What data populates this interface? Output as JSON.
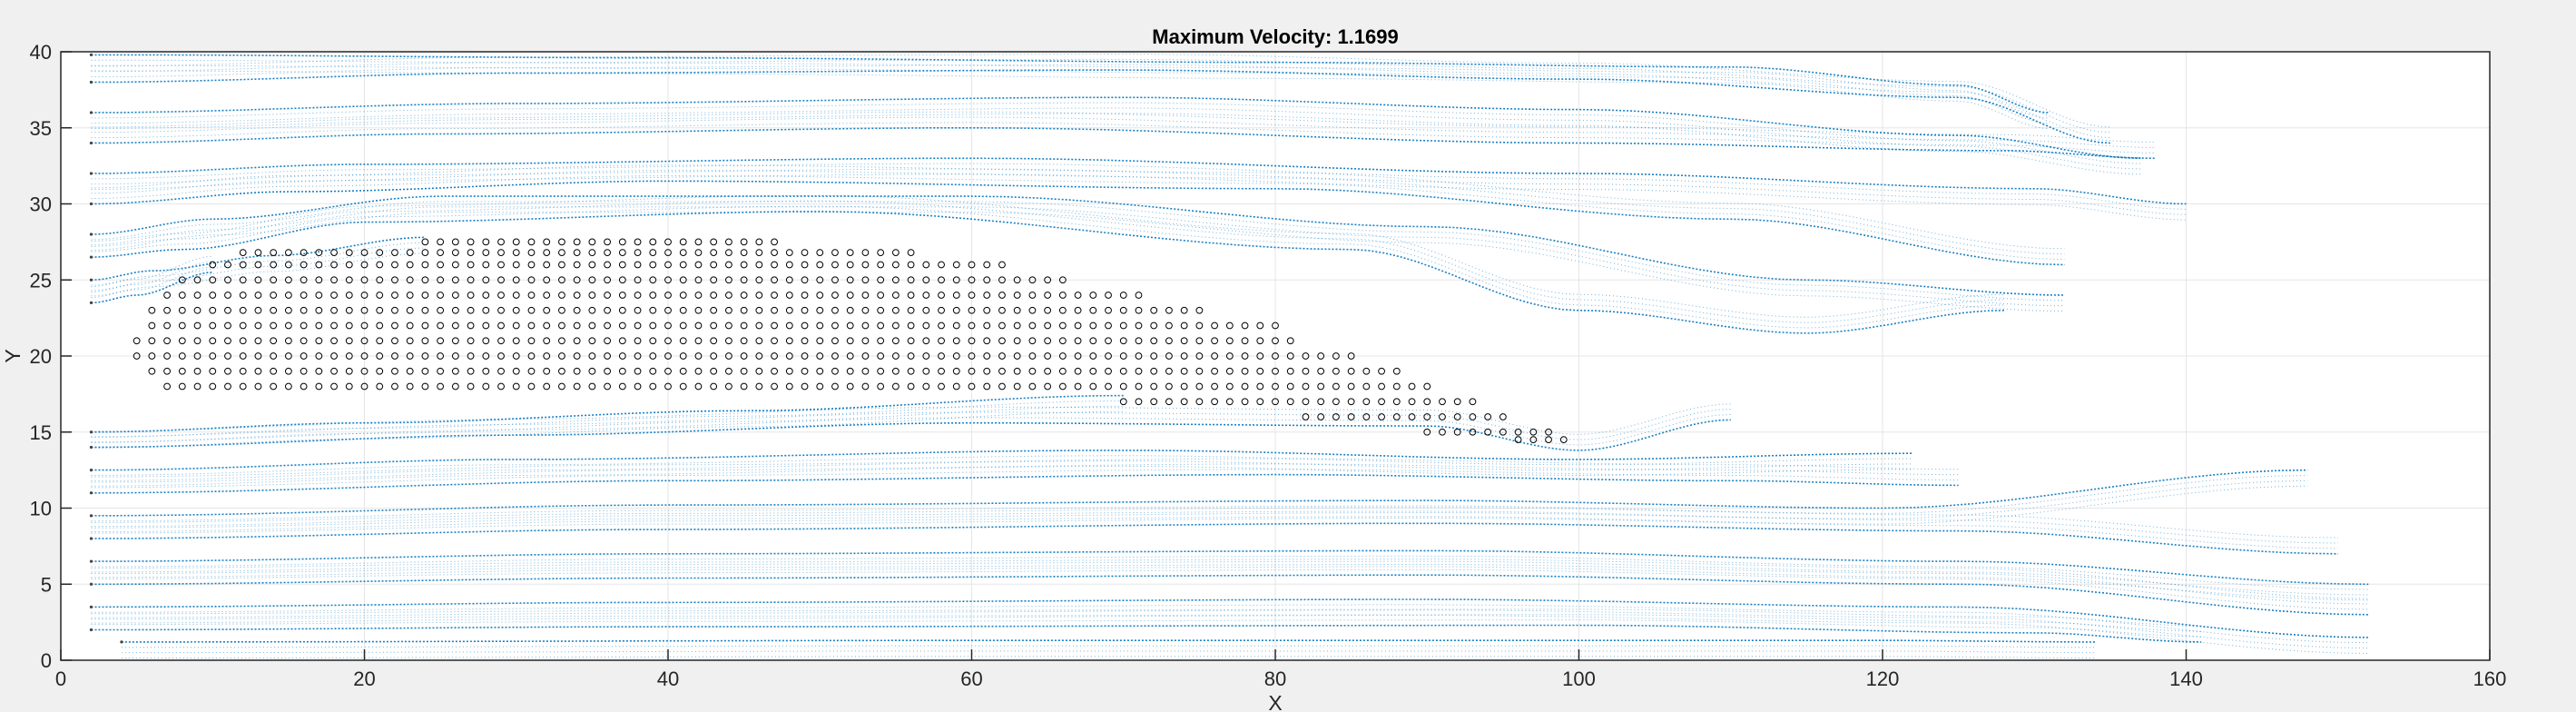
{
  "chart_data": {
    "type": "scatter",
    "title": "Maximum Velocity: 1.1699",
    "xlabel": "X",
    "ylabel": "Y",
    "xlim": [
      0,
      160
    ],
    "ylim": [
      0,
      40
    ],
    "xticks": [
      0,
      20,
      40,
      60,
      80,
      100,
      120,
      140,
      160
    ],
    "yticks": [
      0,
      5,
      10,
      15,
      20,
      25,
      30,
      35,
      40
    ],
    "grid": true,
    "colors": {
      "flow": "#0072BD",
      "obstacle": "#000000",
      "axes_background": "#ffffff",
      "figure_background": "#f0f0f0",
      "grid": "#e6e6e6"
    },
    "series": [
      {
        "marker": "dot",
        "description_visible": false,
        "streamlines": [
          {
            "y0": 39.8,
            "points": [
              [
                2,
                39.8
              ],
              [
                40,
                39.6
              ],
              [
                80,
                39.3
              ],
              [
                110,
                39.0
              ],
              [
                125,
                37.8
              ],
              [
                131,
                36.0
              ]
            ]
          },
          {
            "y0": 38.0,
            "points": [
              [
                2,
                38.0
              ],
              [
                30,
                38.6
              ],
              [
                70,
                38.8
              ],
              [
                100,
                38.2
              ],
              [
                125,
                37.0
              ],
              [
                135,
                34.0
              ]
            ]
          },
          {
            "y0": 36.0,
            "points": [
              [
                2,
                36.0
              ],
              [
                30,
                36.6
              ],
              [
                70,
                37.0
              ],
              [
                100,
                36.2
              ],
              [
                125,
                34.5
              ],
              [
                137,
                33.0
              ]
            ]
          },
          {
            "y0": 34.0,
            "points": [
              [
                2,
                34.0
              ],
              [
                25,
                34.6
              ],
              [
                60,
                35.0
              ],
              [
                100,
                34.0
              ],
              [
                128,
                33.5
              ],
              [
                138,
                33.0
              ]
            ]
          },
          {
            "y0": 32.0,
            "points": [
              [
                2,
                32.0
              ],
              [
                20,
                32.6
              ],
              [
                60,
                33.0
              ],
              [
                100,
                32.0
              ],
              [
                130,
                31.0
              ],
              [
                140,
                30.0
              ]
            ]
          },
          {
            "y0": 30.0,
            "points": [
              [
                2,
                30.0
              ],
              [
                15,
                30.8
              ],
              [
                40,
                31.5
              ],
              [
                80,
                31.0
              ],
              [
                110,
                29.0
              ],
              [
                132,
                26.0
              ]
            ]
          },
          {
            "y0": 28.0,
            "points": [
              [
                2,
                28.0
              ],
              [
                10,
                29.0
              ],
              [
                25,
                30.5
              ],
              [
                60,
                30.5
              ],
              [
                90,
                28.5
              ],
              [
                115,
                25.0
              ],
              [
                132,
                24.0
              ]
            ]
          },
          {
            "y0": 26.5,
            "points": [
              [
                2,
                26.5
              ],
              [
                8,
                27.0
              ],
              [
                20,
                28.8
              ],
              [
                50,
                29.5
              ],
              [
                85,
                27.0
              ],
              [
                100,
                23.0
              ],
              [
                115,
                21.5
              ],
              [
                128,
                23.0
              ]
            ]
          },
          {
            "y0": 25.0,
            "points": [
              [
                2,
                25.0
              ],
              [
                6,
                25.6
              ],
              [
                14,
                26.6
              ],
              [
                24,
                27.8
              ]
            ]
          },
          {
            "y0": 23.5,
            "points": [
              [
                2,
                23.5
              ],
              [
                5,
                24.0
              ],
              [
                10,
                25.5
              ]
            ]
          },
          {
            "y0": 15.0,
            "points": [
              [
                2,
                15.0
              ],
              [
                20,
                15.6
              ],
              [
                45,
                16.4
              ],
              [
                70,
                17.4
              ]
            ]
          },
          {
            "y0": 14.0,
            "points": [
              [
                2,
                14.0
              ],
              [
                30,
                14.8
              ],
              [
                60,
                15.6
              ],
              [
                90,
                15.4
              ],
              [
                100,
                13.8
              ],
              [
                110,
                15.8
              ]
            ]
          },
          {
            "y0": 12.5,
            "points": [
              [
                2,
                12.5
              ],
              [
                30,
                13.2
              ],
              [
                70,
                13.8
              ],
              [
                100,
                13.2
              ],
              [
                122,
                13.6
              ]
            ]
          },
          {
            "y0": 11.0,
            "points": [
              [
                2,
                11.0
              ],
              [
                40,
                11.8
              ],
              [
                80,
                12.2
              ],
              [
                110,
                11.8
              ],
              [
                125,
                11.5
              ]
            ]
          },
          {
            "y0": 9.5,
            "points": [
              [
                2,
                9.5
              ],
              [
                40,
                10.2
              ],
              [
                90,
                10.5
              ],
              [
                120,
                10.0
              ],
              [
                148,
                12.5
              ]
            ]
          },
          {
            "y0": 8.0,
            "points": [
              [
                2,
                8.0
              ],
              [
                40,
                8.6
              ],
              [
                90,
                9.0
              ],
              [
                125,
                8.5
              ],
              [
                150,
                7.0
              ]
            ]
          },
          {
            "y0": 6.5,
            "points": [
              [
                2,
                6.5
              ],
              [
                40,
                7.0
              ],
              [
                90,
                7.2
              ],
              [
                125,
                6.5
              ],
              [
                152,
                5.0
              ]
            ]
          },
          {
            "y0": 5.0,
            "points": [
              [
                2,
                5.0
              ],
              [
                40,
                5.4
              ],
              [
                90,
                5.6
              ],
              [
                125,
                5.0
              ],
              [
                152,
                3.0
              ]
            ]
          },
          {
            "y0": 3.5,
            "points": [
              [
                2,
                3.5
              ],
              [
                40,
                3.8
              ],
              [
                90,
                4.0
              ],
              [
                125,
                3.5
              ],
              [
                152,
                1.5
              ]
            ]
          },
          {
            "y0": 2.0,
            "points": [
              [
                2,
                2.0
              ],
              [
                40,
                2.2
              ],
              [
                100,
                2.3
              ],
              [
                130,
                1.8
              ],
              [
                141,
                1.2
              ]
            ]
          },
          {
            "y0": 1.2,
            "points": [
              [
                4,
                1.2
              ],
              [
                60,
                1.3
              ],
              [
                120,
                1.3
              ],
              [
                134,
                1.2
              ]
            ]
          }
        ]
      },
      {
        "marker": "circle",
        "obstacle_rows": [
          {
            "y": 27.5,
            "x_from": 24,
            "x_to": 47
          },
          {
            "y": 26.8,
            "x_from": 12,
            "x_to": 56
          },
          {
            "y": 26.0,
            "x_from": 10,
            "x_to": 62
          },
          {
            "y": 25.0,
            "x_from": 8,
            "x_to": 66
          },
          {
            "y": 24.0,
            "x_from": 7,
            "x_to": 71
          },
          {
            "y": 23.0,
            "x_from": 6,
            "x_to": 75
          },
          {
            "y": 22.0,
            "x_from": 6,
            "x_to": 80
          },
          {
            "y": 21.0,
            "x_from": 5,
            "x_to": 81
          },
          {
            "y": 20.0,
            "x_from": 5,
            "x_to": 85
          },
          {
            "y": 19.0,
            "x_from": 6,
            "x_to": 88
          },
          {
            "y": 18.0,
            "x_from": 7,
            "x_to": 90
          },
          {
            "y": 17.0,
            "x_from": 70,
            "x_to": 93
          },
          {
            "y": 16.0,
            "x_from": 82,
            "x_to": 95
          },
          {
            "y": 15.0,
            "x_from": 90,
            "x_to": 98
          },
          {
            "y": 14.5,
            "x_from": 96,
            "x_to": 99
          }
        ]
      }
    ]
  }
}
